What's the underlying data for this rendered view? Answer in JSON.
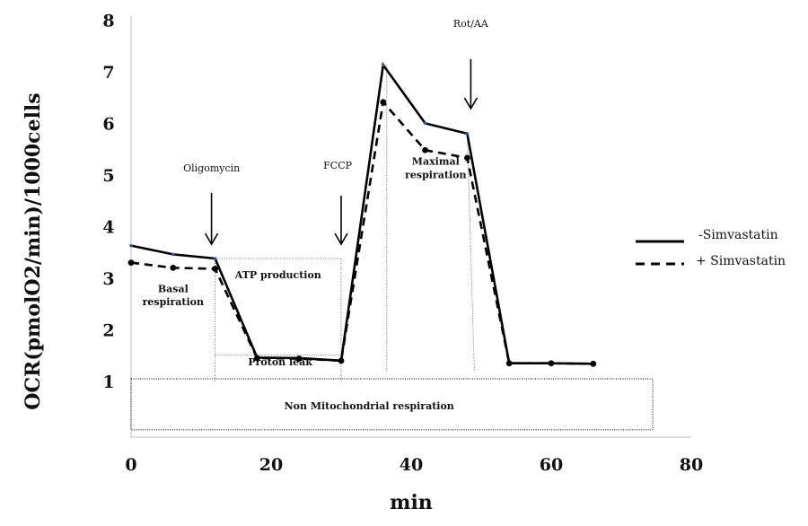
{
  "chart_data": {
    "type": "line",
    "xlabel": "min",
    "ylabel": "OCR(pmolO2/min)/1000cells",
    "xlim": [
      0,
      80
    ],
    "ylim": [
      0,
      8
    ],
    "x_ticks": [
      0,
      20,
      40,
      60,
      80
    ],
    "y_ticks": [
      1,
      2,
      3,
      4,
      5,
      6,
      7,
      8
    ],
    "grid": false,
    "legend_position": "right",
    "series": [
      {
        "name": "-Simvastatin",
        "style": "solid",
        "x": [
          0,
          6,
          12,
          18,
          24,
          30,
          36,
          42,
          48,
          54,
          60,
          66
        ],
        "y": [
          3.65,
          3.48,
          3.4,
          1.48,
          1.47,
          1.42,
          7.15,
          6.02,
          5.82,
          1.37,
          1.37,
          1.36
        ]
      },
      {
        "name": "+ Simvastatin",
        "style": "dashed",
        "x": [
          0,
          6,
          12,
          18,
          24,
          30,
          36,
          42,
          48,
          54,
          60,
          66
        ],
        "y": [
          3.32,
          3.22,
          3.2,
          1.47,
          1.46,
          1.42,
          6.43,
          5.5,
          5.35,
          1.37,
          1.37,
          1.36
        ]
      }
    ],
    "annotations": {
      "oligomycin": "Oligomycin",
      "fccp": "FCCP",
      "rotaa": "Rot/AA",
      "basal_1": "Basal",
      "basal_2": "respiration",
      "atp": "ATP production",
      "proton": "Proton leak",
      "maximal_1": "Maximal",
      "maximal_2": "respiration",
      "nonmito": "Non Mitochondrial  respiration"
    }
  }
}
